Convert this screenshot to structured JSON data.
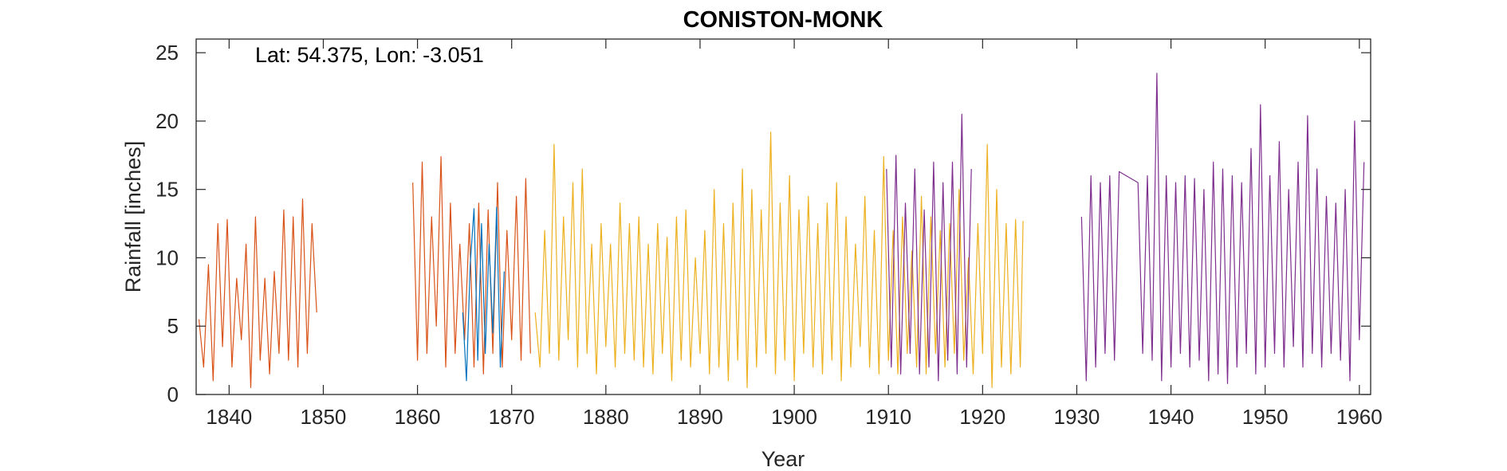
{
  "chart_data": {
    "type": "line",
    "title": "CONISTON-MONK",
    "xlabel": "Year",
    "ylabel": "Rainfall [inches]",
    "annotation": "Lat: 54.375, Lon: -3.051",
    "xlim": [
      1836.5,
      1961.2
    ],
    "ylim": [
      0,
      26
    ],
    "x_ticks": [
      1840,
      1850,
      1860,
      1870,
      1880,
      1890,
      1900,
      1910,
      1920,
      1930,
      1940,
      1950,
      1960
    ],
    "y_ticks": [
      0,
      5,
      10,
      15,
      20,
      25
    ],
    "grid": false,
    "legend": "none",
    "series": [
      {
        "color": "#D95319",
        "x": [
          1836.8,
          1837.3,
          1837.8,
          1838.3,
          1838.8,
          1839.3,
          1839.8,
          1840.3,
          1840.8,
          1841.3,
          1841.8,
          1842.3,
          1842.8,
          1843.3,
          1843.8,
          1844.3,
          1844.8,
          1845.3,
          1845.8,
          1846.3,
          1846.8,
          1847.3,
          1847.8,
          1848.3,
          1848.8,
          1849.3,
          1859.5,
          1860.0,
          1860.5,
          1861.0,
          1861.5,
          1862.0,
          1862.5,
          1863.0,
          1863.5,
          1864.0,
          1864.5,
          1865.0,
          1865.5,
          1866.0,
          1866.5,
          1867.0,
          1867.5,
          1868.0,
          1868.5,
          1869.0,
          1869.5,
          1870.0,
          1870.5,
          1871.0,
          1871.5,
          1872.0
        ],
        "values": [
          5.5,
          2.0,
          9.5,
          1.0,
          12.5,
          3.5,
          12.8,
          2.0,
          8.5,
          4.0,
          11.0,
          0.5,
          13.0,
          2.5,
          8.5,
          1.5,
          9.0,
          3.0,
          13.5,
          2.5,
          13.0,
          2.0,
          14.3,
          3.0,
          12.5,
          6.0,
          15.5,
          2.5,
          17.0,
          3.0,
          13.0,
          5.0,
          17.4,
          2.0,
          14.0,
          3.0,
          11.0,
          4.0,
          12.5,
          2.0,
          14.0,
          1.5,
          13.5,
          3.0,
          15.5,
          2.0,
          12.0,
          4.0,
          14.5,
          2.5,
          15.8,
          3.0
        ]
      },
      {
        "color": "#0072BD",
        "x": [
          1864.8,
          1865.2,
          1865.6,
          1866.0,
          1866.4,
          1866.8,
          1867.2,
          1867.6,
          1868.0,
          1868.4,
          1868.8,
          1869.2
        ],
        "values": [
          6.0,
          1.0,
          9.5,
          13.6,
          2.5,
          12.5,
          3.0,
          11.0,
          4.5,
          13.7,
          2.0,
          9.0
        ]
      },
      {
        "color": "#EDB120",
        "x": [
          1872.5,
          1873.0,
          1873.5,
          1874.0,
          1874.5,
          1875.0,
          1875.5,
          1876.0,
          1876.5,
          1877.0,
          1877.5,
          1878.0,
          1878.5,
          1879.0,
          1879.5,
          1880.0,
          1880.5,
          1881.0,
          1881.5,
          1882.0,
          1882.5,
          1883.0,
          1883.5,
          1884.0,
          1884.5,
          1885.0,
          1885.5,
          1886.0,
          1886.5,
          1887.0,
          1887.5,
          1888.0,
          1888.5,
          1889.0,
          1889.5,
          1890.0,
          1890.5,
          1891.0,
          1891.5,
          1892.0,
          1892.5,
          1893.0,
          1893.5,
          1894.0,
          1894.5,
          1895.0,
          1895.5,
          1896.0,
          1896.5,
          1897.0,
          1897.5,
          1898.0,
          1898.5,
          1899.0,
          1899.5,
          1900.0,
          1900.5,
          1901.0,
          1901.5,
          1902.0,
          1902.5,
          1903.0,
          1903.5,
          1904.0,
          1904.5,
          1905.0,
          1905.5,
          1906.0,
          1906.5,
          1907.0,
          1907.5,
          1908.0,
          1908.5,
          1909.0,
          1909.5,
          1910.0,
          1910.5,
          1911.0,
          1911.5,
          1912.0,
          1912.5,
          1913.0,
          1913.5,
          1914.0,
          1914.5,
          1915.0,
          1915.5,
          1916.0,
          1916.5,
          1917.0,
          1917.5,
          1918.0,
          1918.5,
          1919.0,
          1919.5,
          1920.0,
          1920.5,
          1921.0,
          1921.5,
          1922.0,
          1922.5,
          1923.0,
          1923.5,
          1924.0,
          1924.3
        ],
        "values": [
          6.0,
          2.0,
          12.0,
          3.0,
          18.3,
          2.5,
          13.0,
          4.0,
          15.5,
          2.0,
          16.5,
          3.0,
          11.0,
          1.5,
          12.5,
          3.5,
          11.0,
          2.0,
          14.0,
          3.0,
          12.5,
          2.5,
          13.0,
          2.0,
          11.0,
          1.5,
          12.5,
          3.0,
          11.5,
          1.0,
          13.0,
          2.5,
          13.5,
          2.0,
          10.0,
          3.0,
          12.0,
          1.5,
          15.0,
          2.0,
          12.5,
          1.0,
          14.0,
          2.5,
          16.5,
          0.5,
          15.0,
          2.0,
          13.5,
          3.0,
          19.2,
          1.5,
          14.0,
          2.5,
          16.0,
          1.0,
          13.5,
          3.0,
          14.5,
          2.0,
          12.5,
          1.5,
          14.0,
          2.5,
          15.5,
          1.0,
          13.0,
          2.0,
          11.0,
          3.5,
          14.5,
          2.0,
          12.0,
          1.5,
          17.4,
          2.5,
          12.0,
          1.5,
          13.0,
          3.0,
          10.5,
          2.0,
          14.5,
          1.5,
          13.0,
          3.0,
          12.0,
          2.0,
          12.5,
          3.0,
          15.0,
          2.5,
          10.0,
          1.5,
          12.5,
          3.0,
          18.3,
          0.5,
          15.0,
          2.0,
          12.5,
          1.5,
          12.8,
          2.0,
          12.7
        ]
      },
      {
        "color": "#7E2F8E",
        "x": [
          1909.8,
          1910.3,
          1910.8,
          1911.3,
          1911.8,
          1912.3,
          1912.8,
          1913.3,
          1913.8,
          1914.3,
          1914.8,
          1915.3,
          1915.8,
          1916.3,
          1916.8,
          1917.3,
          1917.8,
          1918.3,
          1918.8,
          1930.5,
          1931.0,
          1931.5,
          1932.0,
          1932.5,
          1933.0,
          1933.5,
          1934.0,
          1934.5,
          1936.5,
          1937.0,
          1937.5,
          1938.0,
          1938.5,
          1939.0,
          1939.5,
          1940.0,
          1940.5,
          1941.0,
          1941.5,
          1942.0,
          1942.5,
          1943.0,
          1943.5,
          1944.0,
          1944.5,
          1945.0,
          1945.5,
          1946.0,
          1946.5,
          1947.0,
          1947.5,
          1948.0,
          1948.5,
          1949.0,
          1949.5,
          1950.0,
          1950.5,
          1951.0,
          1951.5,
          1952.0,
          1952.5,
          1953.0,
          1953.5,
          1954.0,
          1954.5,
          1955.0,
          1955.5,
          1956.0,
          1956.5,
          1957.0,
          1957.5,
          1958.0,
          1958.5,
          1959.0,
          1959.5,
          1960.0,
          1960.5
        ],
        "values": [
          16.5,
          2.0,
          17.5,
          1.5,
          14.0,
          3.0,
          16.5,
          1.5,
          13.5,
          2.0,
          17.0,
          1.0,
          15.5,
          2.5,
          17.0,
          1.5,
          20.5,
          2.0,
          16.5,
          13.0,
          1.0,
          16.0,
          2.0,
          15.5,
          3.0,
          16.0,
          2.5,
          16.3,
          15.5,
          3.0,
          16.0,
          2.5,
          23.5,
          1.0,
          16.0,
          2.0,
          15.5,
          3.0,
          16.0,
          2.0,
          15.8,
          2.5,
          15.0,
          1.0,
          17.0,
          1.5,
          16.5,
          0.8,
          16.0,
          2.0,
          15.5,
          3.0,
          18.0,
          1.5,
          21.2,
          2.0,
          16.0,
          3.0,
          18.5,
          2.0,
          15.0,
          3.5,
          17.0,
          2.0,
          20.4,
          3.0,
          16.5,
          2.0,
          14.5,
          3.0,
          14.0,
          2.5,
          15.0,
          1.0,
          20.0,
          4.0,
          17.0
        ]
      }
    ]
  }
}
